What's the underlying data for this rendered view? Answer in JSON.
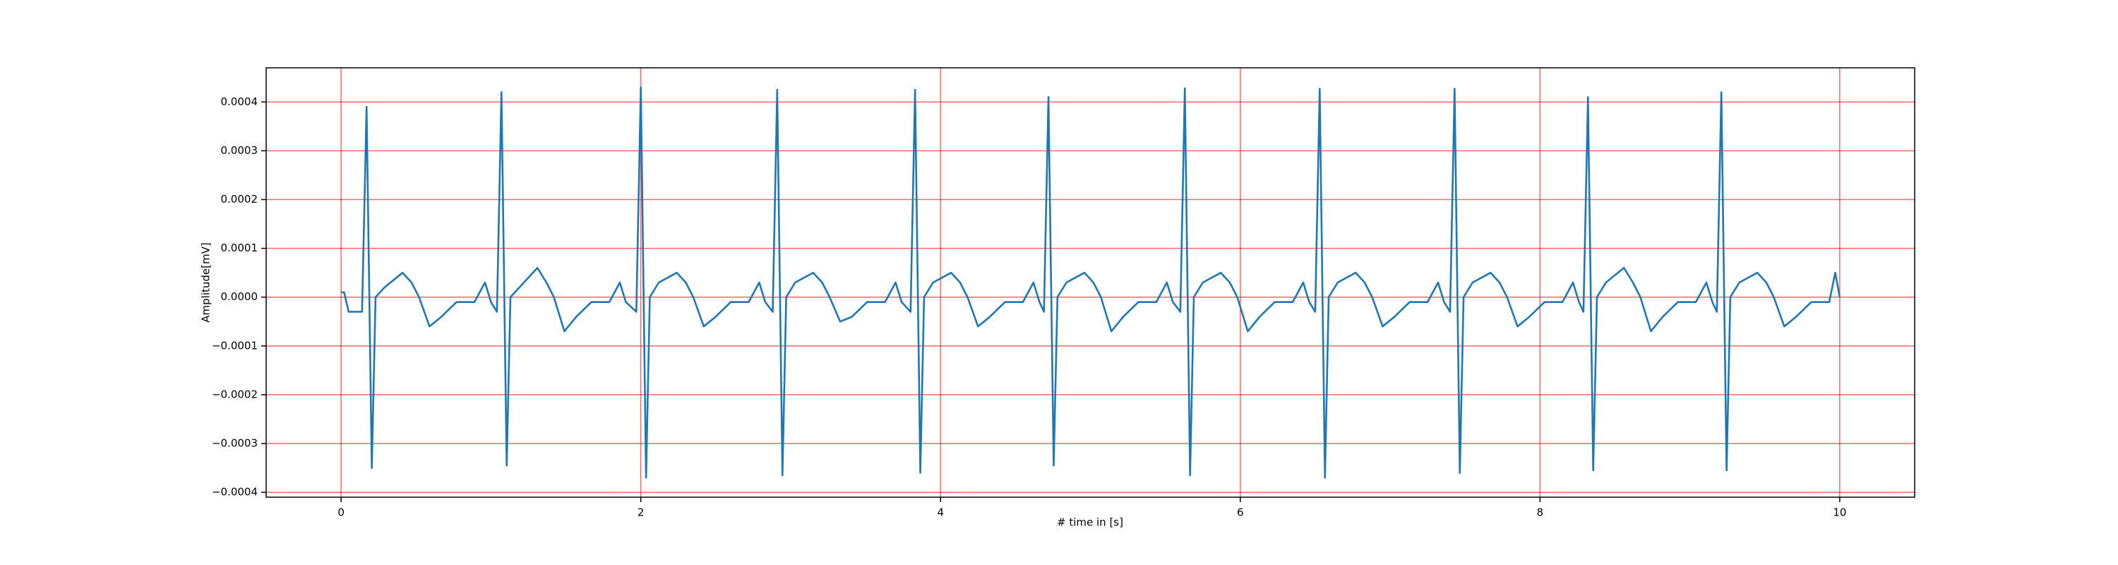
{
  "chart_data": {
    "type": "line",
    "xlabel": "# time in [s]",
    "ylabel": "Amplitude[mV]",
    "x": [
      0.0,
      0.02,
      0.05,
      0.1,
      0.14,
      0.17,
      0.205,
      0.23,
      0.29,
      0.41,
      0.47,
      0.52,
      0.59,
      0.67,
      0.77,
      0.89,
      0.96,
      1.0,
      1.04,
      1.07,
      1.105,
      1.13,
      1.19,
      1.31,
      1.37,
      1.42,
      1.49,
      1.57,
      1.67,
      1.79,
      1.86,
      1.9,
      1.97,
      2.0,
      2.035,
      2.06,
      2.12,
      2.24,
      2.3,
      2.35,
      2.42,
      2.5,
      2.6,
      2.72,
      2.79,
      2.83,
      2.88,
      2.91,
      2.945,
      2.97,
      3.03,
      3.15,
      3.21,
      3.26,
      3.33,
      3.41,
      3.51,
      3.63,
      3.7,
      3.74,
      3.8,
      3.83,
      3.865,
      3.89,
      3.95,
      4.07,
      4.13,
      4.18,
      4.25,
      4.33,
      4.43,
      4.55,
      4.62,
      4.66,
      4.69,
      4.72,
      4.755,
      4.78,
      4.84,
      4.96,
      5.02,
      5.07,
      5.14,
      5.22,
      5.32,
      5.44,
      5.51,
      5.55,
      5.6,
      5.63,
      5.665,
      5.69,
      5.75,
      5.87,
      5.93,
      5.98,
      6.05,
      6.13,
      6.23,
      6.35,
      6.42,
      6.46,
      6.5,
      6.53,
      6.565,
      6.59,
      6.65,
      6.77,
      6.83,
      6.88,
      6.95,
      7.03,
      7.13,
      7.25,
      7.32,
      7.36,
      7.4,
      7.43,
      7.465,
      7.49,
      7.55,
      7.67,
      7.73,
      7.78,
      7.85,
      7.93,
      8.03,
      8.15,
      8.22,
      8.26,
      8.29,
      8.32,
      8.355,
      8.38,
      8.44,
      8.56,
      8.62,
      8.67,
      8.74,
      8.82,
      8.92,
      9.04,
      9.11,
      9.15,
      9.18,
      9.21,
      9.245,
      9.27,
      9.33,
      9.45,
      9.51,
      9.56,
      9.63,
      9.71,
      9.81,
      9.93,
      9.97,
      10.0
    ],
    "series": [
      {
        "color": "#1f77b4",
        "values": [
          1e-05,
          1e-05,
          -3e-05,
          -3e-05,
          -3e-05,
          0.00039,
          -0.00035,
          0.0,
          2e-05,
          5e-05,
          3e-05,
          0.0,
          -6e-05,
          -4e-05,
          -1e-05,
          -1e-05,
          3e-05,
          -1e-05,
          -3e-05,
          0.00042,
          -0.000345,
          0.0,
          2e-05,
          6e-05,
          3e-05,
          0.0,
          -7e-05,
          -4e-05,
          -1e-05,
          -1e-05,
          3e-05,
          -1e-05,
          -3e-05,
          0.00043,
          -0.00037,
          0.0,
          3e-05,
          5e-05,
          3e-05,
          0.0,
          -6e-05,
          -4e-05,
          -1e-05,
          -1e-05,
          3e-05,
          -1e-05,
          -3e-05,
          0.000425,
          -0.000365,
          0.0,
          3e-05,
          5e-05,
          3e-05,
          0.0,
          -5e-05,
          -4e-05,
          -1e-05,
          -1e-05,
          3e-05,
          -1e-05,
          -3e-05,
          0.000425,
          -0.00036,
          0.0,
          3e-05,
          5e-05,
          3e-05,
          0.0,
          -6e-05,
          -4e-05,
          -1e-05,
          -1e-05,
          3e-05,
          -1e-05,
          -3e-05,
          0.00041,
          -0.000345,
          0.0,
          3e-05,
          5e-05,
          3e-05,
          0.0,
          -7e-05,
          -4e-05,
          -1e-05,
          -1e-05,
          3e-05,
          -1e-05,
          -3e-05,
          0.000428,
          -0.000365,
          0.0,
          3e-05,
          5e-05,
          3e-05,
          0.0,
          -7e-05,
          -4e-05,
          -1e-05,
          -1e-05,
          3e-05,
          -1e-05,
          -3e-05,
          0.000427,
          -0.00037,
          0.0,
          3e-05,
          5e-05,
          3e-05,
          0.0,
          -6e-05,
          -4e-05,
          -1e-05,
          -1e-05,
          3e-05,
          -1e-05,
          -3e-05,
          0.000427,
          -0.00036,
          0.0,
          3e-05,
          5e-05,
          3e-05,
          0.0,
          -6e-05,
          -4e-05,
          -1e-05,
          -1e-05,
          3e-05,
          -1e-05,
          -3e-05,
          0.00041,
          -0.000355,
          0.0,
          3e-05,
          6e-05,
          3e-05,
          0.0,
          -7e-05,
          -4e-05,
          -1e-05,
          -1e-05,
          3e-05,
          -1e-05,
          -3e-05,
          0.00042,
          -0.000355,
          0.0,
          3e-05,
          5e-05,
          3e-05,
          0.0,
          -6e-05,
          -4e-05,
          -1e-05,
          -1e-05,
          5e-05,
          0.0
        ]
      }
    ],
    "xlim": [
      -0.5,
      10.5
    ],
    "xticks": [
      0,
      2,
      4,
      6,
      8,
      10
    ],
    "ylim": [
      -0.00041,
      0.00047
    ],
    "yticks": [
      {
        "value": -0.0004,
        "label": "−0.0004"
      },
      {
        "value": -0.0003,
        "label": "−0.0003"
      },
      {
        "value": -0.0002,
        "label": "−0.0002"
      },
      {
        "value": -0.0001,
        "label": "−0.0001"
      },
      {
        "value": 0.0,
        "label": "0.0000"
      },
      {
        "value": 0.0001,
        "label": "0.0001"
      },
      {
        "value": 0.0002,
        "label": "0.0002"
      },
      {
        "value": 0.0003,
        "label": "0.0003"
      },
      {
        "value": 0.0004,
        "label": "0.0004"
      }
    ],
    "grid": true,
    "grid_color": "#ff0000"
  }
}
